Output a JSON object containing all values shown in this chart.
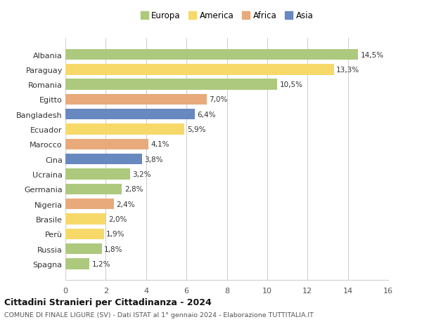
{
  "countries": [
    "Albania",
    "Paraguay",
    "Romania",
    "Egitto",
    "Bangladesh",
    "Ecuador",
    "Marocco",
    "Cina",
    "Ucraina",
    "Germania",
    "Nigeria",
    "Brasile",
    "Perù",
    "Russia",
    "Spagna"
  ],
  "values": [
    14.5,
    13.3,
    10.5,
    7.0,
    6.4,
    5.9,
    4.1,
    3.8,
    3.2,
    2.8,
    2.4,
    2.0,
    1.9,
    1.8,
    1.2
  ],
  "labels": [
    "14,5%",
    "13,3%",
    "10,5%",
    "7,0%",
    "6,4%",
    "5,9%",
    "4,1%",
    "3,8%",
    "3,2%",
    "2,8%",
    "2,4%",
    "2,0%",
    "1,9%",
    "1,8%",
    "1,2%"
  ],
  "continents": [
    "Europa",
    "America",
    "Europa",
    "Africa",
    "Asia",
    "America",
    "Africa",
    "Asia",
    "Europa",
    "Europa",
    "Africa",
    "America",
    "America",
    "Europa",
    "Europa"
  ],
  "colors": {
    "Europa": "#adc97e",
    "America": "#f7d96a",
    "Africa": "#e8aa7a",
    "Asia": "#6888c0"
  },
  "legend_order": [
    "Europa",
    "America",
    "Africa",
    "Asia"
  ],
  "title": "Cittadini Stranieri per Cittadinanza - 2024",
  "subtitle": "COMUNE DI FINALE LIGURE (SV) - Dati ISTAT al 1° gennaio 2024 - Elaborazione TUTTITALIA.IT",
  "xlim": [
    0,
    16
  ],
  "xticks": [
    0,
    2,
    4,
    6,
    8,
    10,
    12,
    14,
    16
  ],
  "bg_color": "#ffffff",
  "grid_color": "#cccccc"
}
